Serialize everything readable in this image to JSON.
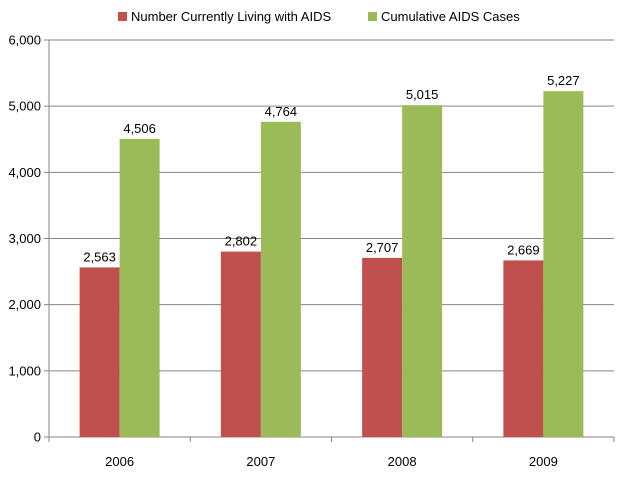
{
  "chart_data": {
    "type": "bar",
    "categories": [
      "2006",
      "2007",
      "2008",
      "2009"
    ],
    "series": [
      {
        "name": "Number Currently Living with AIDS",
        "values": [
          2563,
          2802,
          2707,
          2669
        ],
        "labels": [
          "2,563",
          "2,802",
          "2,707",
          "2,669"
        ],
        "color": "#c0504d"
      },
      {
        "name": "Cumulative AIDS Cases",
        "values": [
          4506,
          4764,
          5015,
          5227
        ],
        "labels": [
          "4,506",
          "4,764",
          "5,015",
          "5,227"
        ],
        "color": "#9bbb59"
      }
    ],
    "ylim": [
      0,
      6000
    ],
    "yticks": [
      0,
      1000,
      2000,
      3000,
      4000,
      5000,
      6000
    ],
    "ytick_labels": [
      "0",
      "1,000",
      "2,000",
      "3,000",
      "4,000",
      "5,000",
      "6,000"
    ],
    "grid": true,
    "legend": "top"
  }
}
